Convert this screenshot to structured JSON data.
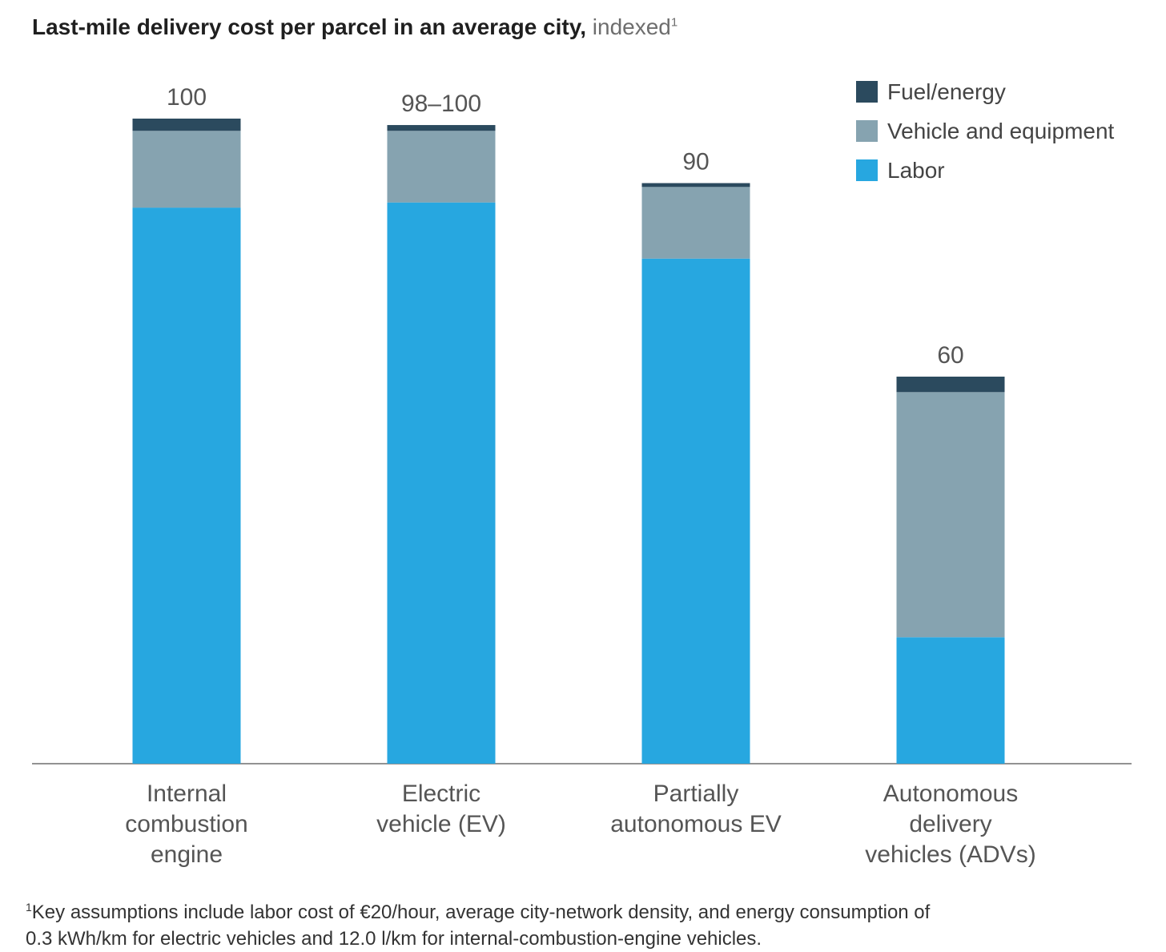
{
  "title": {
    "main": "Last-mile delivery cost per parcel in an average city,",
    "sub": "indexed",
    "sup": "1"
  },
  "footnote": {
    "marker": "1",
    "text": "Key assumptions include labor cost of €20/hour, average city-network density, and energy consumption of\n0.3 kWh/km for electric vehicles and 12.0 l/km for internal-combustion-engine vehicles."
  },
  "chart_data": {
    "type": "bar",
    "stacked": true,
    "title": "Last-mile delivery cost per parcel in an average city, indexed",
    "categories": [
      "Internal\ncombustion\nengine",
      "Electric\nvehicle (EV)",
      "Partially\nautonomous EV",
      "Autonomous\ndelivery\nvehicles (ADVs)"
    ],
    "totals_labels": [
      "100",
      "98–100",
      "90",
      "60"
    ],
    "series": [
      {
        "name": "Labor",
        "color": "#27a7e0",
        "values": [
          86.2,
          87.0,
          78.3,
          19.6
        ]
      },
      {
        "name": "Vehicle and equipment",
        "color": "#86a3b0",
        "values": [
          11.9,
          11.1,
          11.1,
          38.0
        ]
      },
      {
        "name": "Fuel/energy",
        "color": "#2b4a5e",
        "values": [
          1.9,
          0.9,
          0.6,
          2.4
        ]
      }
    ],
    "legend_order": [
      "Fuel/energy",
      "Vehicle and equipment",
      "Labor"
    ],
    "ylim": [
      0,
      100
    ],
    "grid": false,
    "legend_position": "top-right"
  }
}
